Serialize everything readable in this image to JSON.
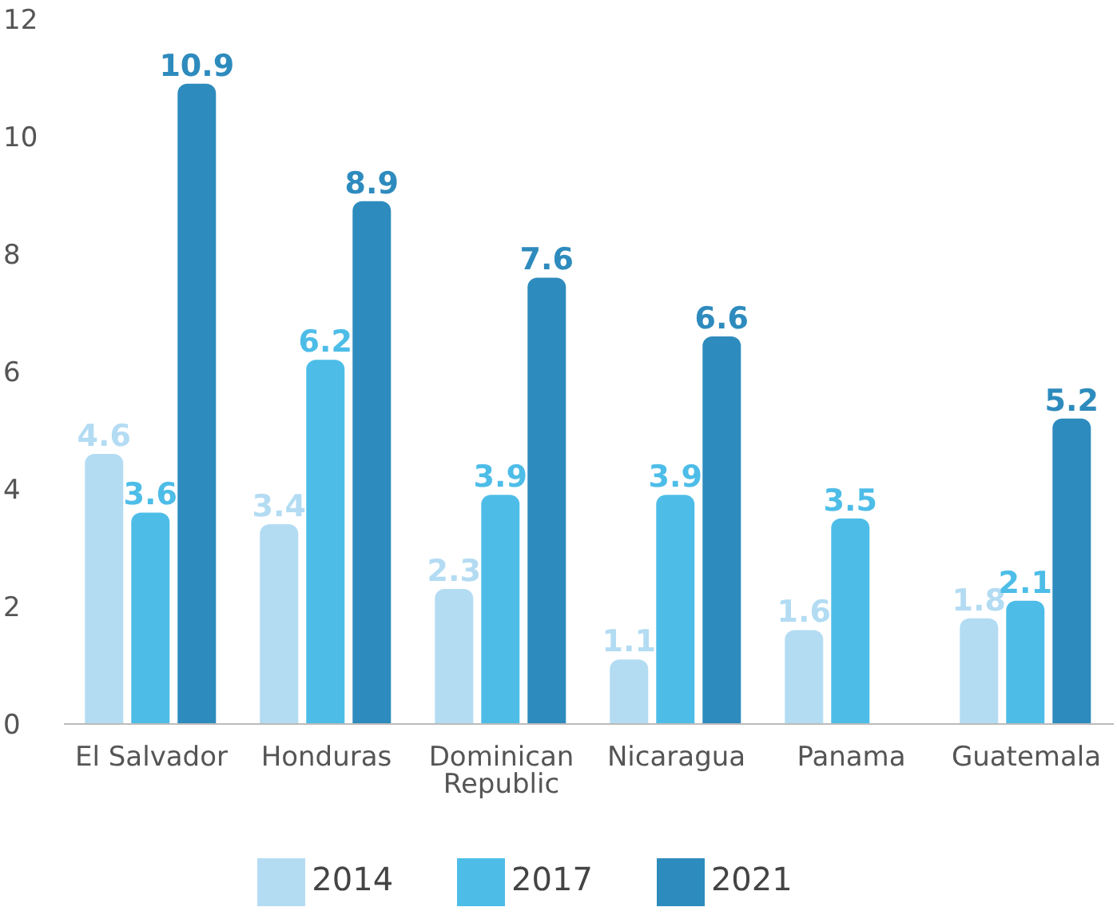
{
  "chart_data": {
    "type": "bar",
    "categories": [
      "El Salvador",
      "Honduras",
      "Dominican Republic",
      "Nicaragua",
      "Panama",
      "Guatemala"
    ],
    "series": [
      {
        "name": "2014",
        "color": "#b3dcf3",
        "values": [
          4.6,
          3.4,
          2.3,
          1.1,
          1.6,
          1.8
        ]
      },
      {
        "name": "2017",
        "color": "#4dbde8",
        "values": [
          3.6,
          6.2,
          3.9,
          3.9,
          3.5,
          2.1
        ]
      },
      {
        "name": "2021",
        "color": "#2e8bbd",
        "values": [
          10.9,
          8.9,
          7.6,
          6.6,
          null,
          5.2
        ]
      }
    ],
    "ylim": [
      0,
      12
    ],
    "yticks": [
      0,
      2,
      4,
      6,
      8,
      10,
      12
    ],
    "grid": false,
    "legend": "bottom",
    "data_labels": true
  }
}
